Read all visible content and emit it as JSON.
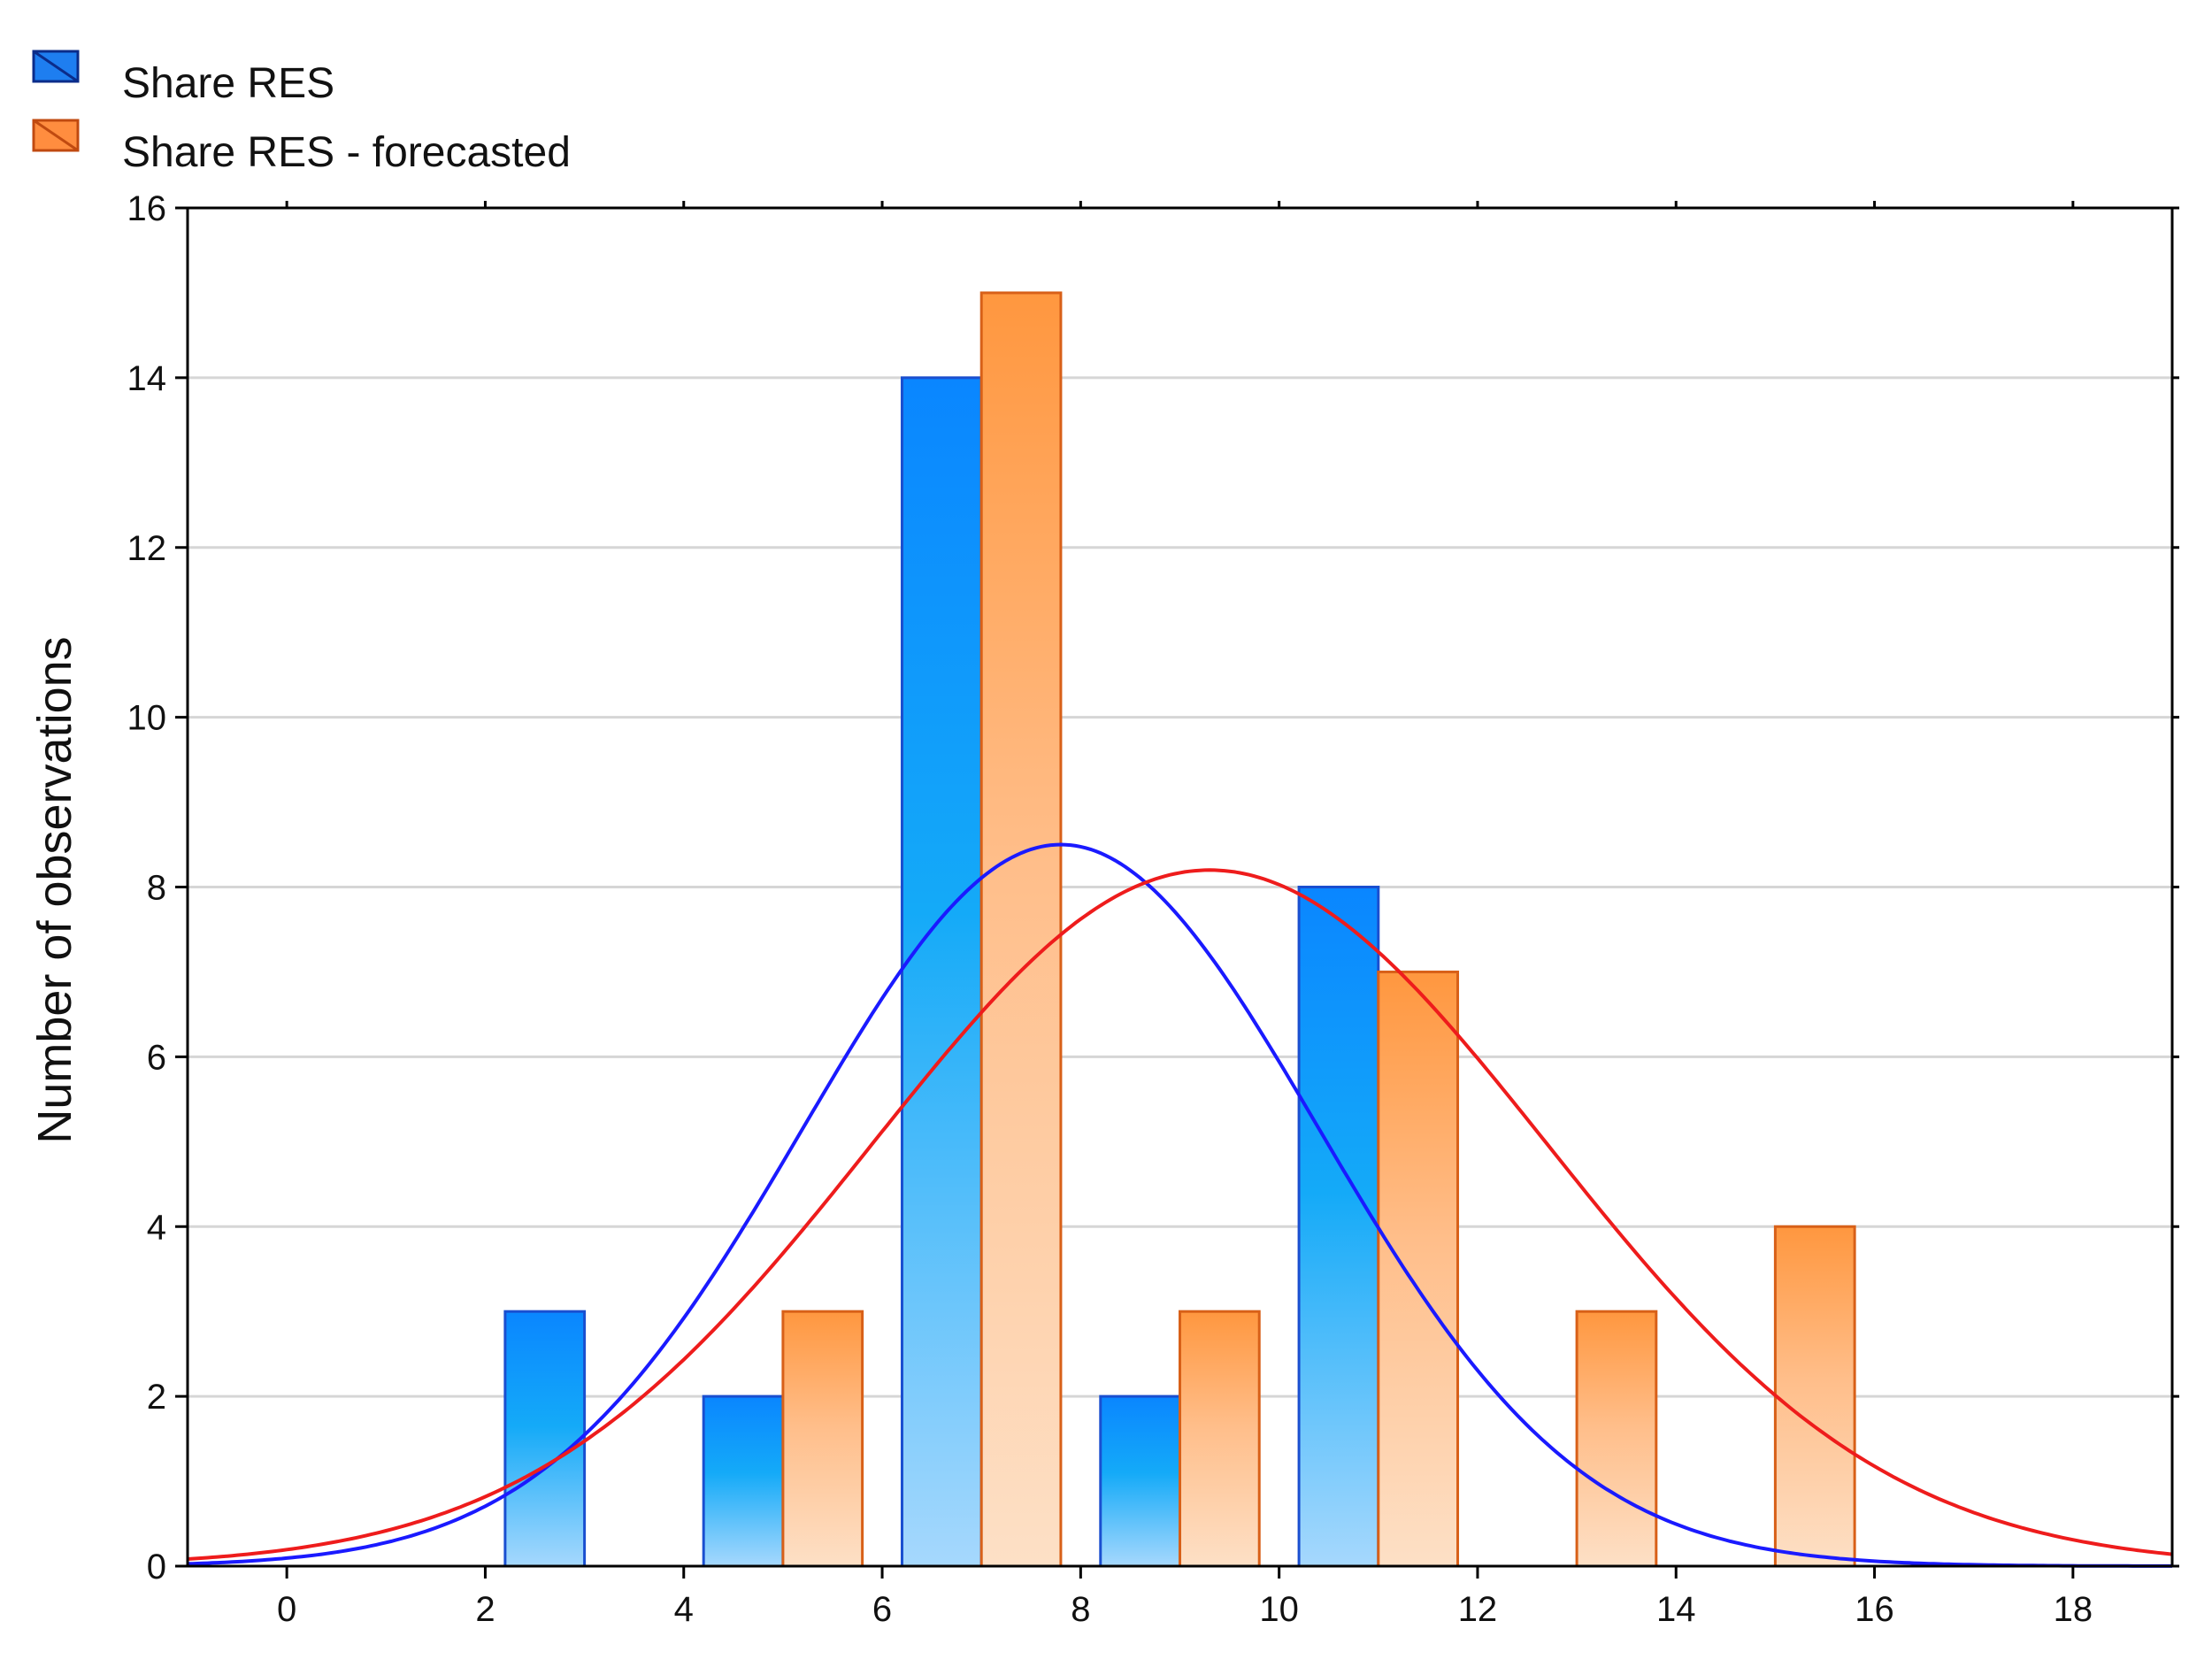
{
  "chart_data": {
    "type": "bar",
    "title": "",
    "xlabel": "",
    "ylabel": "Number of observations",
    "xlim": [
      -1,
      19
    ],
    "ylim": [
      0,
      16
    ],
    "x_ticks": [
      0,
      2,
      4,
      6,
      8,
      10,
      12,
      14,
      16,
      18
    ],
    "y_ticks": [
      0,
      2,
      4,
      6,
      8,
      10,
      12,
      14,
      16
    ],
    "grid": true,
    "legend_position": "top-left",
    "series": [
      {
        "name": "Share RES",
        "color": "#1e7be0",
        "bins": [
          {
            "from": 2.2,
            "to": 3.0,
            "value": 3
          },
          {
            "from": 4.2,
            "to": 5.0,
            "value": 2
          },
          {
            "from": 6.2,
            "to": 7.0,
            "value": 14
          },
          {
            "from": 8.2,
            "to": 9.0,
            "value": 2
          },
          {
            "from": 10.2,
            "to": 11.0,
            "value": 8
          }
        ],
        "fit_curve": {
          "type": "normal",
          "peak": 8.5,
          "mean": 7.8,
          "sd": 2.6,
          "color": "#1a1aff"
        }
      },
      {
        "name": "Share RES - forecasted",
        "color": "#e07020",
        "bins": [
          {
            "from": 5.0,
            "to": 5.8,
            "value": 3
          },
          {
            "from": 7.0,
            "to": 7.8,
            "value": 15
          },
          {
            "from": 9.0,
            "to": 9.8,
            "value": 3
          },
          {
            "from": 11.0,
            "to": 11.8,
            "value": 7
          },
          {
            "from": 13.0,
            "to": 13.8,
            "value": 3
          },
          {
            "from": 15.0,
            "to": 15.8,
            "value": 4
          }
        ],
        "fit_curve": {
          "type": "normal",
          "peak": 8.2,
          "mean": 9.3,
          "sd": 3.4,
          "color": "#ee1c1c"
        }
      }
    ]
  }
}
